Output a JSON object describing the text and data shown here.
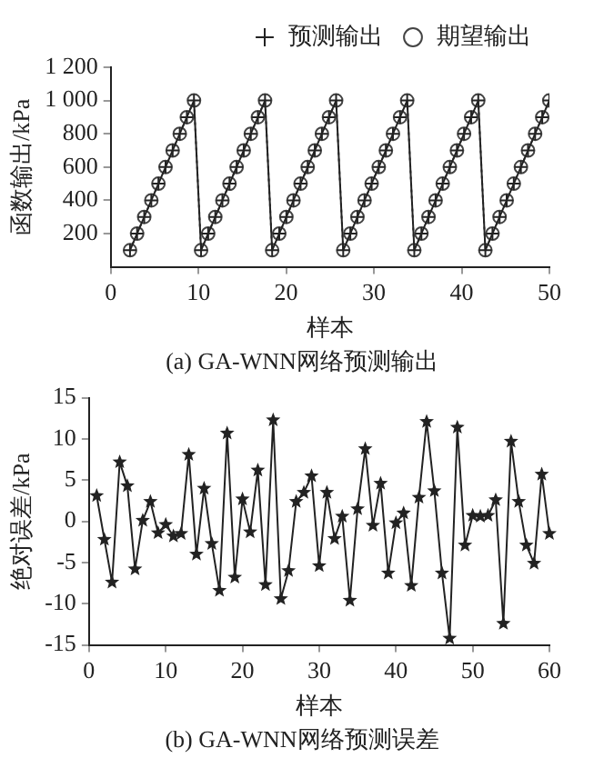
{
  "chart_data": [
    {
      "type": "line",
      "xlabel": "样本",
      "ylabel": "函数输出/kPa",
      "legend": "top",
      "grid": false,
      "annotations": [
        "(a) GA-WNN网络预测输出"
      ],
      "xlim": [
        0,
        50
      ],
      "xticks": [
        0,
        10,
        20,
        30,
        40,
        50
      ],
      "ylim": [
        0,
        1200
      ],
      "yticks": [
        200,
        400,
        600,
        800,
        {
          "value": 1000,
          "label": "1 000"
        },
        {
          "value": 1200,
          "label": "1 200"
        }
      ],
      "x": [
        2.2,
        3.01,
        3.82,
        4.63,
        5.44,
        6.25,
        7.06,
        7.87,
        8.68,
        9.49,
        10.3,
        11.11,
        11.92,
        12.73,
        13.54,
        14.35,
        15.16,
        15.97,
        16.78,
        17.59,
        18.4,
        19.21,
        20.02,
        20.83,
        21.64,
        22.45,
        23.26,
        24.07,
        24.88,
        25.69,
        26.5,
        27.31,
        28.12,
        28.93,
        29.74,
        30.55,
        31.36,
        32.17,
        32.98,
        33.79,
        34.6,
        35.41,
        36.22,
        37.03,
        37.84,
        38.65,
        39.46,
        40.27,
        41.08,
        41.89,
        42.7,
        43.51,
        44.32,
        45.13,
        45.94,
        46.75,
        47.56,
        48.37,
        49.18,
        49.99
      ],
      "series": [
        {
          "name": "预测输出",
          "color": "#222222",
          "marker": "cross",
          "line_style": "solid",
          "values": [
            100,
            200,
            300,
            400,
            500,
            600,
            700,
            800,
            900,
            1000,
            100,
            200,
            300,
            400,
            500,
            600,
            700,
            800,
            900,
            1000,
            100,
            200,
            300,
            400,
            500,
            600,
            700,
            800,
            900,
            1000,
            100,
            200,
            300,
            400,
            500,
            600,
            700,
            800,
            900,
            1000,
            100,
            200,
            300,
            400,
            500,
            600,
            700,
            800,
            900,
            1000,
            100,
            200,
            300,
            400,
            500,
            600,
            700,
            800,
            900,
            1000
          ]
        },
        {
          "name": "期望输出",
          "color": "#444444",
          "marker": "circle",
          "line_style": "dotted",
          "values": [
            100,
            200,
            300,
            400,
            500,
            600,
            700,
            800,
            900,
            1000,
            100,
            200,
            300,
            400,
            500,
            600,
            700,
            800,
            900,
            1000,
            100,
            200,
            300,
            400,
            500,
            600,
            700,
            800,
            900,
            1000,
            100,
            200,
            300,
            400,
            500,
            600,
            700,
            800,
            900,
            1000,
            100,
            200,
            300,
            400,
            500,
            600,
            700,
            800,
            900,
            1000,
            100,
            200,
            300,
            400,
            500,
            600,
            700,
            800,
            900,
            1000
          ]
        }
      ]
    },
    {
      "type": "line",
      "xlabel": "样本",
      "ylabel": "绝对误差/kPa",
      "grid": false,
      "marker": "star",
      "line_style": "solid",
      "annotations": [
        "(b) GA-WNN网络预测误差"
      ],
      "xlim": [
        0,
        60
      ],
      "xticks": [
        0,
        10,
        20,
        30,
        40,
        50,
        60
      ],
      "ylim": [
        -15,
        15
      ],
      "yticks": [
        -15,
        -10,
        -5,
        0,
        5,
        10,
        15
      ],
      "x": [
        1,
        2,
        3,
        4,
        5,
        6,
        7,
        8,
        9,
        10,
        11,
        12,
        13,
        14,
        15,
        16,
        17,
        18,
        19,
        20,
        21,
        22,
        23,
        24,
        25,
        26,
        27,
        28,
        29,
        30,
        31,
        32,
        33,
        34,
        35,
        36,
        37,
        38,
        39,
        40,
        41,
        42,
        43,
        44,
        45,
        46,
        47,
        48,
        49,
        50,
        51,
        52,
        53,
        54,
        55,
        56,
        57,
        58,
        59,
        60
      ],
      "series": [
        {
          "color": "#222222",
          "values": [
            3.1,
            -2.2,
            -7.4,
            7.2,
            4.3,
            -5.8,
            0.1,
            2.4,
            -1.4,
            -0.4,
            -1.8,
            -1.5,
            8.1,
            -4.0,
            4.0,
            -2.7,
            -8.4,
            10.7,
            -6.8,
            2.7,
            -1.3,
            6.2,
            -7.7,
            12.3,
            -9.4,
            -6.0,
            2.4,
            3.5,
            5.5,
            -5.4,
            3.5,
            -2.1,
            0.6,
            -9.6,
            1.5,
            8.8,
            -0.5,
            4.6,
            -6.3,
            -0.2,
            1.0,
            -7.8,
            2.9,
            12.1,
            3.7,
            -6.3,
            -14.2,
            11.4,
            -2.9,
            0.7,
            0.6,
            0.7,
            2.6,
            -12.4,
            9.7,
            2.4,
            -2.9,
            -5.1,
            5.7,
            -1.5
          ]
        }
      ]
    }
  ]
}
